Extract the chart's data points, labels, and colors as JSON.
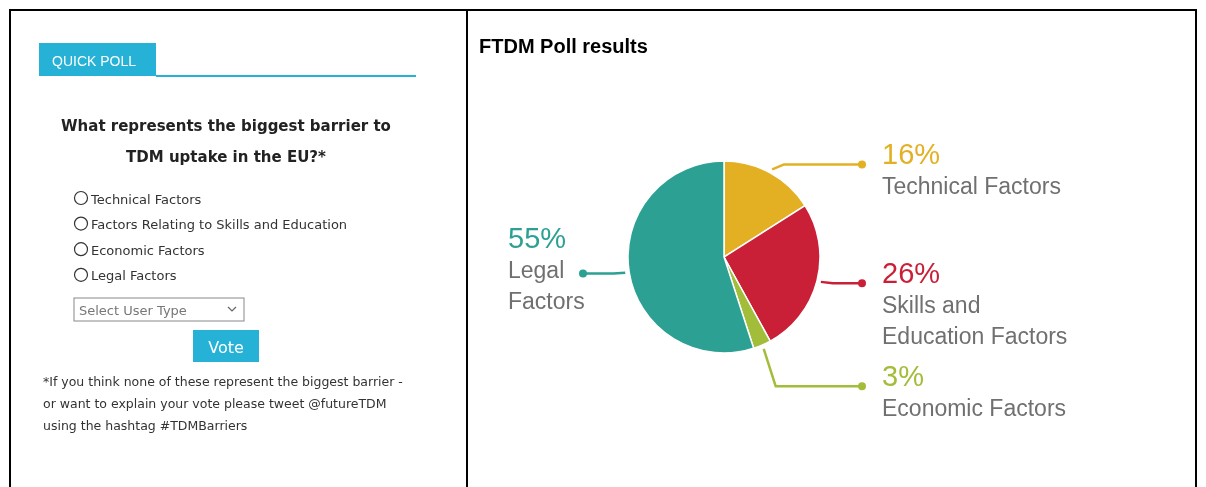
{
  "chart_data": [
    {
      "type": "other",
      "title": "QUICK POLL",
      "subtitle": "What represents the biggest barrier to TDM uptake in the EU?*",
      "annotations": [
        "Technical Factors",
        "Factors Relating to Skills and Education",
        "Economic Factors",
        "Legal Factors",
        "Select User Type",
        "Vote",
        "*If you think none of these represent the biggest barrier - or want to explain your vote please tweet @futureTDM using the hashtag #TDMBarriers"
      ]
    },
    {
      "type": "pie",
      "title": "FTDM Poll results",
      "categories": [
        "Technical Factors",
        "Skills and Education Factors",
        "Economic Factors",
        "Legal Factors"
      ],
      "values": [
        16,
        26,
        3,
        55
      ],
      "value_labels": [
        "16%",
        "26%",
        "3%",
        "55%"
      ],
      "colors": [
        "#e3b024",
        "#c91f37",
        "#a2bd3a",
        "#2da094"
      ],
      "legend": "right"
    }
  ]
}
